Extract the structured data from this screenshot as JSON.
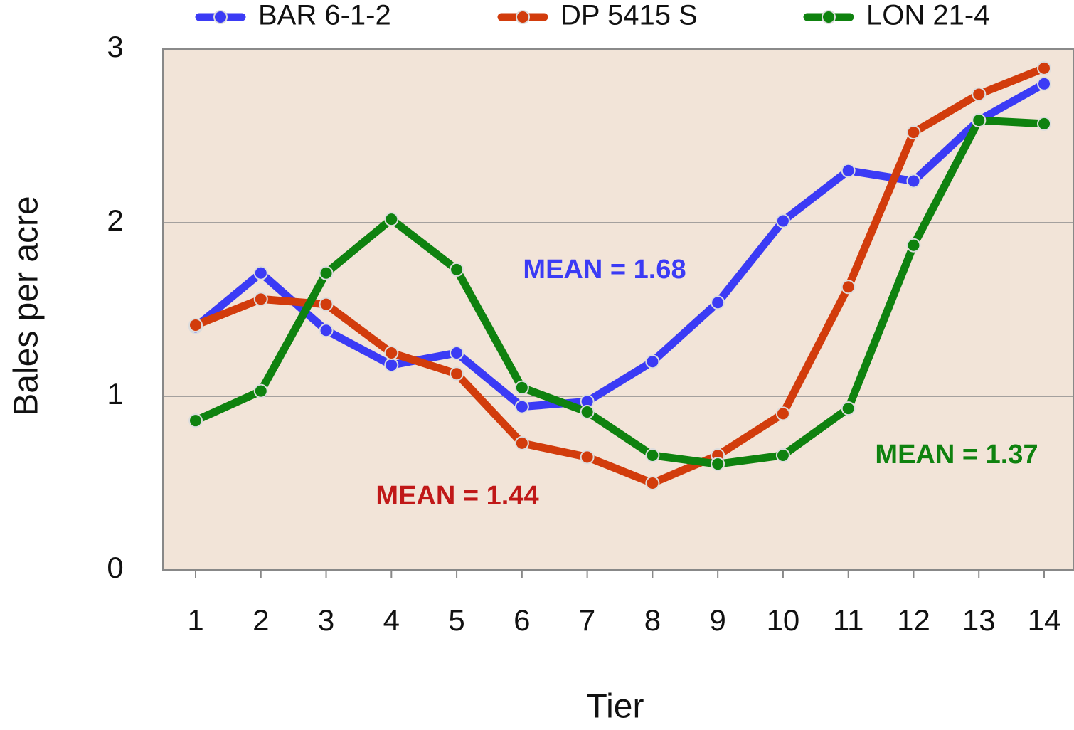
{
  "chart_data": {
    "type": "line",
    "x_label": "Tier",
    "y_label": "Bales per acre",
    "categories": [
      "1",
      "2",
      "3",
      "4",
      "5",
      "6",
      "7",
      "8",
      "9",
      "10",
      "11",
      "12",
      "13",
      "14"
    ],
    "series": [
      {
        "name": "BAR 6-1-2",
        "color": "#3b3bf5",
        "values": [
          1.4,
          1.71,
          1.38,
          1.18,
          1.25,
          0.94,
          0.97,
          1.2,
          1.54,
          2.01,
          2.3,
          2.24,
          2.59,
          2.8
        ]
      },
      {
        "name": "DP 5415 S",
        "color": "#d23c0c",
        "values": [
          1.41,
          1.56,
          1.53,
          1.25,
          1.13,
          0.73,
          0.65,
          0.5,
          0.66,
          0.9,
          1.63,
          2.52,
          2.74,
          2.89
        ]
      },
      {
        "name": "LON 21-4",
        "color": "#0f820f",
        "values": [
          0.86,
          1.03,
          1.71,
          2.02,
          1.73,
          1.05,
          0.91,
          0.66,
          0.61,
          0.66,
          0.93,
          1.87,
          2.59,
          2.57
        ]
      }
    ],
    "annotations": [
      {
        "text": "MEAN = 1.68",
        "color": "#3b3bf5"
      },
      {
        "text": "MEAN = 1.44",
        "color": "#c01818"
      },
      {
        "text": "MEAN = 1.37",
        "color": "#0f820f"
      }
    ],
    "ylim": [
      0,
      3
    ],
    "yticks": [
      0,
      1,
      2,
      3
    ],
    "grid": true,
    "legend": "top",
    "background": "#f2e4d8"
  }
}
